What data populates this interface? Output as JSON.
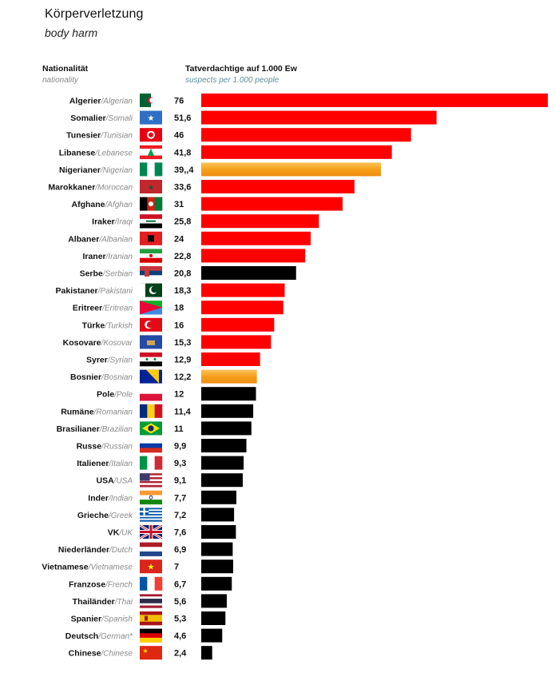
{
  "title": "Körperverletzung",
  "subtitle": "body harm",
  "col_nationality": "Nationalität",
  "col_nationality_sub": "nationality",
  "col_suspects": "Tatverdachtige auf 1.000 Ew",
  "col_suspects_sub": "suspects per 1.000 people",
  "colors": {
    "red": "#ff0000",
    "orange": "#f7a51e",
    "black": "#000000"
  },
  "chart_data": {
    "type": "bar",
    "orientation": "horizontal",
    "title": "Körperverletzung",
    "subtitle": "body harm",
    "xlim": [
      0,
      76
    ],
    "grid": false,
    "legend": "none",
    "rows": [
      {
        "de": "Algerier",
        "en": "Algerian",
        "label": "76",
        "value": 76,
        "color": "red",
        "flag": "algeria-flag"
      },
      {
        "de": "Somalier",
        "en": "Somali",
        "label": "51,6",
        "value": 51.6,
        "color": "red",
        "flag": "somalia-flag"
      },
      {
        "de": "Tunesier",
        "en": "Tunisian",
        "label": "46",
        "value": 46,
        "color": "red",
        "flag": "tunisia-flag"
      },
      {
        "de": "Libanese",
        "en": "Lebanese",
        "label": "41,8",
        "value": 41.8,
        "color": "red",
        "flag": "lebanon-flag"
      },
      {
        "de": "Nigerianer",
        "en": "Nigerian",
        "label": "39,,4",
        "value": 39.4,
        "color": "orange",
        "flag": "nigeria-flag"
      },
      {
        "de": "Marokkaner",
        "en": "Moroccan",
        "label": "33,6",
        "value": 33.6,
        "color": "red",
        "flag": "morocco-flag"
      },
      {
        "de": "Afghane",
        "en": "Afghan",
        "label": "31",
        "value": 31,
        "color": "red",
        "flag": "afghanistan-flag"
      },
      {
        "de": "Iraker",
        "en": "Iraqi",
        "label": "25,8",
        "value": 25.8,
        "color": "red",
        "flag": "iraq-flag"
      },
      {
        "de": "Albaner",
        "en": "Albanian",
        "label": "24",
        "value": 24,
        "color": "red",
        "flag": "albania-flag"
      },
      {
        "de": "Iraner",
        "en": "Iranian",
        "label": "22,8",
        "value": 22.8,
        "color": "red",
        "flag": "iran-flag"
      },
      {
        "de": "Serbe",
        "en": "Serbian",
        "label": "20,8",
        "value": 20.8,
        "color": "black",
        "flag": "serbia-flag"
      },
      {
        "de": "Pakistaner",
        "en": "Pakistani",
        "label": "18,3",
        "value": 18.3,
        "color": "red",
        "flag": "pakistan-flag"
      },
      {
        "de": "Eritreer",
        "en": "Eritrean",
        "label": "18",
        "value": 18,
        "color": "red",
        "flag": "eritrea-flag"
      },
      {
        "de": "Türke",
        "en": "Turkish",
        "label": "16",
        "value": 16,
        "color": "red",
        "flag": "turkey-flag"
      },
      {
        "de": "Kosovare",
        "en": "Kosovar",
        "label": "15,3",
        "value": 15.3,
        "color": "red",
        "flag": "kosovo-flag"
      },
      {
        "de": "Syrer",
        "en": "Syrian",
        "label": "12,9",
        "value": 12.9,
        "color": "red",
        "flag": "syria-flag"
      },
      {
        "de": "Bosnier",
        "en": "Bosnian",
        "label": "12,2",
        "value": 12.2,
        "color": "orange",
        "flag": "bosnia-flag"
      },
      {
        "de": "Pole",
        "en": "Pole",
        "label": "12",
        "value": 12,
        "color": "black",
        "flag": "poland-flag"
      },
      {
        "de": "Rumäne",
        "en": "Romanian",
        "label": "11,4",
        "value": 11.4,
        "color": "black",
        "flag": "romania-flag"
      },
      {
        "de": "Brasilianer",
        "en": "Brazilian",
        "label": "11",
        "value": 11,
        "color": "black",
        "flag": "brazil-flag"
      },
      {
        "de": "Russe",
        "en": "Russian",
        "label": "9,9",
        "value": 9.9,
        "color": "black",
        "flag": "russia-flag"
      },
      {
        "de": "Italiener",
        "en": "Italian",
        "label": "9,3",
        "value": 9.3,
        "color": "black",
        "flag": "italy-flag"
      },
      {
        "de": "USA",
        "en": "USA",
        "label": "9,1",
        "value": 9.1,
        "color": "black",
        "flag": "usa-flag"
      },
      {
        "de": "Inder",
        "en": "Indian",
        "label": "7,7",
        "value": 7.7,
        "color": "black",
        "flag": "india-flag"
      },
      {
        "de": "Grieche",
        "en": "Greek",
        "label": "7,2",
        "value": 7.2,
        "color": "black",
        "flag": "greece-flag"
      },
      {
        "de": "VK",
        "en": "UK",
        "label": "7,6",
        "value": 7.6,
        "color": "black",
        "flag": "uk-flag"
      },
      {
        "de": "Niederländer",
        "en": "Dutch",
        "label": "6,9",
        "value": 6.9,
        "color": "black",
        "flag": "netherlands-flag"
      },
      {
        "de": "Vietnamese",
        "en": "Vietnamese",
        "label": "7",
        "value": 7,
        "color": "black",
        "flag": "vietnam-flag"
      },
      {
        "de": "Franzose",
        "en": "French",
        "label": "6,7",
        "value": 6.7,
        "color": "black",
        "flag": "france-flag"
      },
      {
        "de": "Thailänder",
        "en": "Thai",
        "label": "5,6",
        "value": 5.6,
        "color": "black",
        "flag": "thailand-flag"
      },
      {
        "de": "Spanier",
        "en": "Spanish",
        "label": "5,3",
        "value": 5.3,
        "color": "black",
        "flag": "spain-flag"
      },
      {
        "de": "Deutsch",
        "en": "German*",
        "label": "4,6",
        "value": 4.6,
        "color": "black",
        "flag": "germany-flag"
      },
      {
        "de": "Chinese",
        "en": "Chinese",
        "label": "2,4",
        "value": 2.4,
        "color": "black",
        "flag": "china-flag"
      }
    ]
  }
}
